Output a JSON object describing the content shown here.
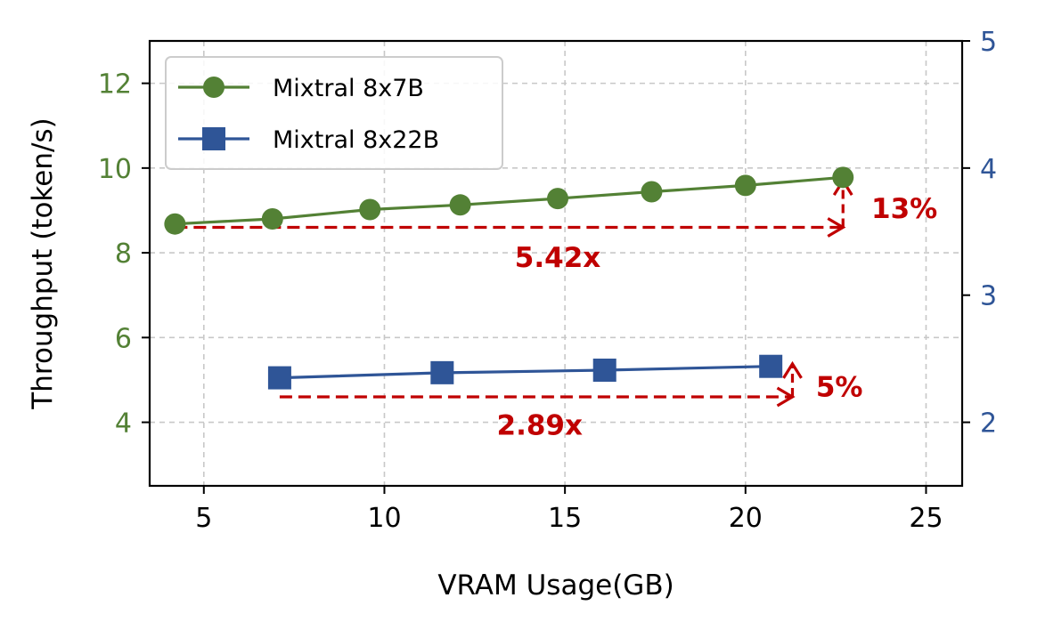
{
  "chart_data": {
    "type": "line",
    "xlabel": "VRAM Usage(GB)",
    "ylabel": "Throughput (token/s)",
    "xlim": [
      3.5,
      26
    ],
    "ylim": [
      2.5,
      13
    ],
    "y2lim": [
      1.5,
      5
    ],
    "x_ticks": [
      "5",
      "10",
      "15",
      "20",
      "25"
    ],
    "y_ticks": [
      "4",
      "6",
      "8",
      "10",
      "12"
    ],
    "y2_ticks": [
      "2",
      "3",
      "4",
      "5"
    ],
    "grid": true,
    "legend_position": "top-left",
    "colors": {
      "green": "#538135",
      "blue": "#2f5597",
      "red": "#c00000",
      "grid": "#c8c8c8"
    },
    "series": [
      {
        "name": "Mixtral 8x7B",
        "axis": "left",
        "marker": "circle",
        "color": "#538135",
        "x": [
          4.2,
          6.9,
          9.6,
          12.1,
          14.8,
          17.4,
          20.0,
          22.7
        ],
        "y": [
          8.68,
          8.8,
          9.02,
          9.13,
          9.28,
          9.44,
          9.59,
          9.78
        ]
      },
      {
        "name": "Mixtral 8x22B",
        "axis": "right",
        "marker": "square",
        "color": "#2f5597",
        "x": [
          7.1,
          11.6,
          16.1,
          20.7
        ],
        "y": [
          2.35,
          2.39,
          2.41,
          2.44
        ]
      }
    ],
    "annotations": [
      {
        "label": "5.42x",
        "kind": "horizontal-arrow",
        "axis": "left",
        "x_from": 4.2,
        "x_to": 22.7,
        "y": 8.6,
        "label_x": 14.8,
        "label_y": 7.9
      },
      {
        "label": "13%",
        "kind": "vertical-arrow",
        "axis": "left",
        "x": 22.7,
        "y_from": 8.6,
        "y_to": 9.7,
        "label_x": 24.4,
        "label_y": 9.05
      },
      {
        "label": "2.89x",
        "kind": "horizontal-arrow",
        "axis": "right",
        "x_from": 7.1,
        "x_to": 21.3,
        "y": 2.2,
        "label_x": 14.3,
        "label_y": 1.98
      },
      {
        "label": "5%",
        "kind": "vertical-arrow",
        "axis": "right",
        "x": 21.3,
        "y_from": 2.2,
        "y_to": 2.46,
        "label_x": 22.6,
        "label_y": 2.28
      }
    ]
  }
}
